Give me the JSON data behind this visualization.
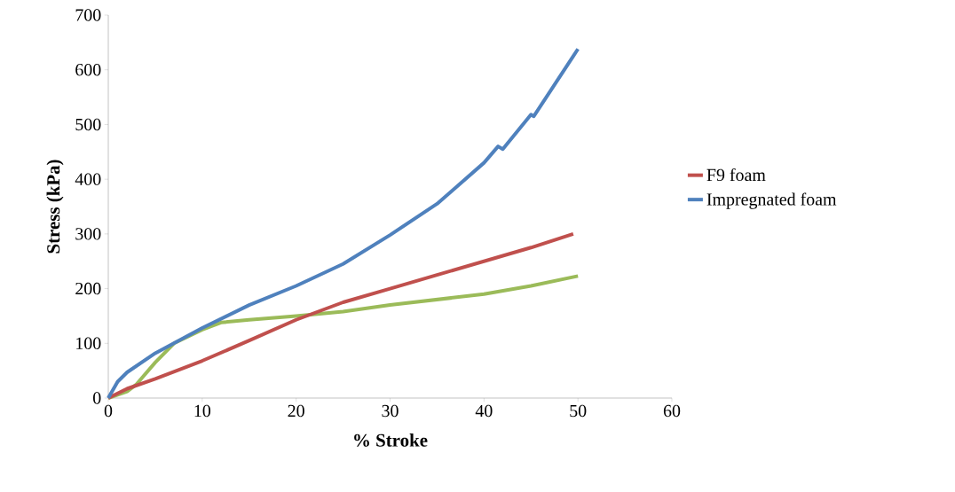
{
  "chart_data": {
    "type": "line",
    "xlabel": "% Stroke",
    "ylabel": "Stress (kPa)",
    "xlim": [
      0,
      60
    ],
    "xticks": [
      0,
      10,
      20,
      30,
      40,
      50,
      60
    ],
    "ylim": [
      0,
      700
    ],
    "yticks": [
      0,
      100,
      200,
      300,
      400,
      500,
      600,
      700
    ],
    "grid": false,
    "legend": "right",
    "marker": "none",
    "line_style": "solid",
    "series": [
      {
        "color": "#9bbb59",
        "x": [
          0,
          2,
          3,
          5,
          7,
          10,
          12,
          15,
          20,
          25,
          30,
          35,
          40,
          45,
          50
        ],
        "values": [
          0,
          12,
          25,
          65,
          100,
          125,
          138,
          143,
          150,
          158,
          170,
          180,
          190,
          205,
          223
        ]
      },
      {
        "name": "F9 foam",
        "color": "#c0504d",
        "x": [
          0,
          2,
          5,
          10,
          15,
          20,
          25,
          30,
          35,
          40,
          45,
          49.5
        ],
        "values": [
          0,
          17,
          35,
          68,
          105,
          143,
          175,
          200,
          225,
          250,
          275,
          300
        ]
      },
      {
        "name": "Impregnated foam",
        "color": "#4f81bd",
        "x": [
          0,
          1,
          2,
          5,
          10,
          15,
          20,
          25,
          30,
          35,
          40,
          41.5,
          42,
          45,
          45.3,
          49.5,
          50
        ],
        "values": [
          0,
          30,
          47,
          82,
          128,
          170,
          205,
          245,
          298,
          355,
          430,
          460,
          455,
          518,
          515,
          625,
          638
        ]
      }
    ]
  }
}
